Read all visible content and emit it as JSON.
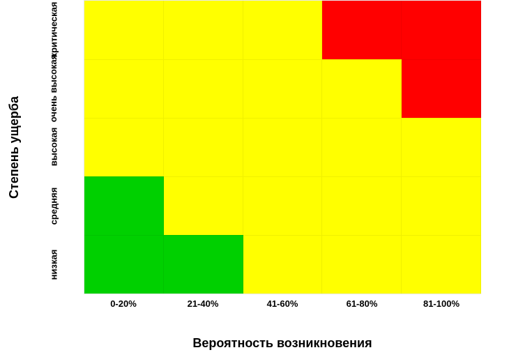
{
  "risk_matrix": {
    "type": "heatmap",
    "x_axis_title": "Вероятность возникновения",
    "y_axis_title": "Степень ущерба",
    "x_ticks": [
      "0-20%",
      "21-40%",
      "41-60%",
      "61-80%",
      "81-100%"
    ],
    "y_ticks_top_to_bottom": [
      "критическая",
      "очень высокая",
      "высокая",
      "средняя",
      "низкая"
    ],
    "palette": {
      "green": "#00d000",
      "yellow": "#ffff00",
      "red": "#ff0000"
    },
    "cells_top_to_bottom": [
      [
        "yellow",
        "yellow",
        "yellow",
        "red",
        "red"
      ],
      [
        "yellow",
        "yellow",
        "yellow",
        "yellow",
        "red"
      ],
      [
        "yellow",
        "yellow",
        "yellow",
        "yellow",
        "yellow"
      ],
      [
        "green",
        "yellow",
        "yellow",
        "yellow",
        "yellow"
      ],
      [
        "green",
        "green",
        "yellow",
        "yellow",
        "yellow"
      ]
    ],
    "grid_color": "#e8e8e8",
    "background_color": "#ffffff",
    "title_fontsize": 18,
    "tick_fontsize": 13,
    "font_weight": "700"
  }
}
